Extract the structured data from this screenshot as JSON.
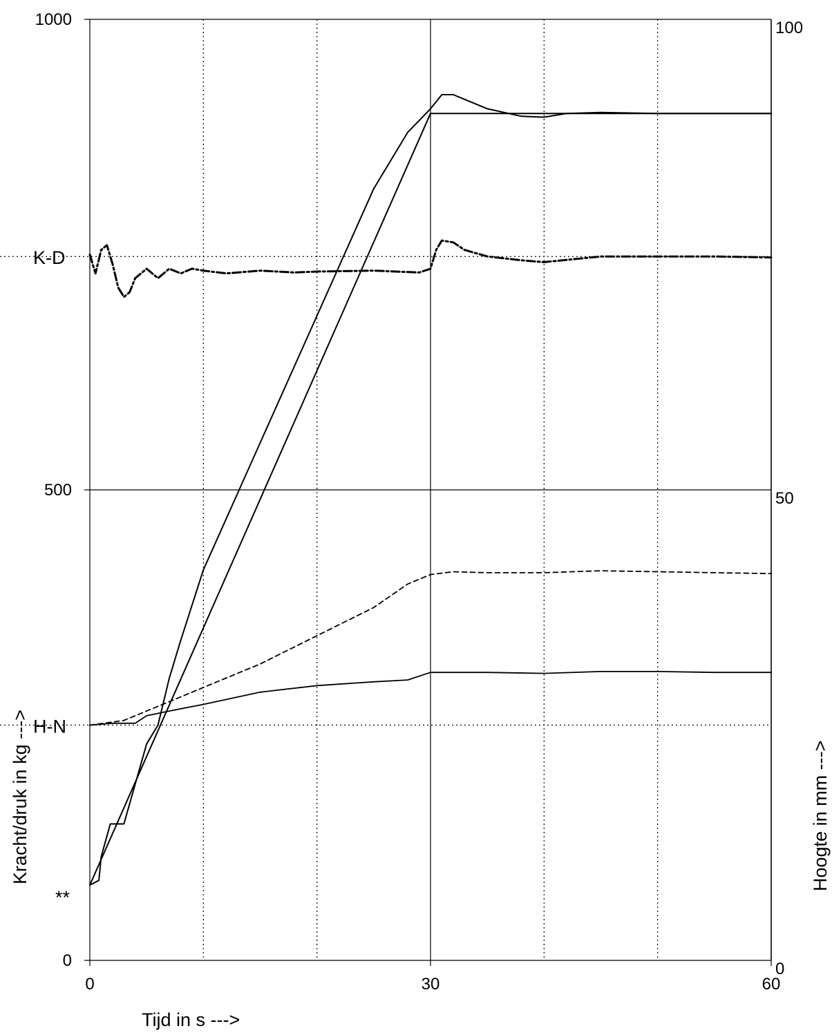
{
  "chart_data": {
    "type": "line",
    "title": "",
    "xlabel": "Tijd in s --->",
    "ylabel_left": "Kracht/druk in kg --->",
    "ylabel_right": "Hoogte in mm --->",
    "xlim": [
      0,
      60
    ],
    "ylim_left": [
      0,
      1000
    ],
    "ylim_right": [
      0,
      100
    ],
    "x_ticks": [
      "0",
      "30",
      "60"
    ],
    "y_left_ticks": [
      "0",
      "500",
      "1000"
    ],
    "y_right_ticks": [
      "0",
      "50",
      "100"
    ],
    "grid": {
      "horizontal": [
        0,
        500,
        1000
      ],
      "vertical_solid": [
        0,
        30,
        60
      ],
      "vertical_dotted": [
        10,
        20,
        40,
        50
      ]
    },
    "reference_lines": [
      {
        "label": "K-D",
        "y": 748
      },
      {
        "label": "H-N",
        "y": 250
      }
    ],
    "annotation": "**",
    "series": [
      {
        "style": "solid",
        "axis": "left",
        "x": [
          0,
          30,
          60
        ],
        "y": [
          80,
          900,
          900
        ]
      },
      {
        "style": "solid",
        "axis": "left",
        "x": [
          0,
          0.8,
          1,
          1.8,
          3,
          5,
          6,
          7,
          8,
          10,
          15,
          20,
          25,
          28,
          30,
          31,
          32,
          33,
          35,
          38,
          40,
          42,
          45,
          50,
          55,
          60
        ],
        "y": [
          80,
          85,
          110,
          145,
          145,
          230,
          250,
          300,
          340,
          415,
          550,
          685,
          820,
          880,
          905,
          920,
          920,
          915,
          905,
          897,
          896,
          900,
          901,
          900,
          900,
          900
        ]
      },
      {
        "style": "dash-dot",
        "axis": "left",
        "x": [
          0,
          0.5,
          1,
          1.5,
          2,
          2.5,
          3,
          3.5,
          4,
          5,
          6,
          7,
          8,
          9,
          10,
          12,
          15,
          18,
          20,
          25,
          29,
          30,
          30.5,
          31,
          32,
          33,
          35,
          38,
          40,
          45,
          50,
          55,
          60
        ],
        "y": [
          750,
          730,
          755,
          760,
          740,
          715,
          705,
          710,
          725,
          735,
          725,
          735,
          730,
          735,
          733,
          730,
          733,
          731,
          732,
          733,
          731,
          735,
          755,
          765,
          763,
          755,
          748,
          744,
          742,
          748,
          748,
          748,
          747
        ]
      },
      {
        "style": "dashed",
        "axis": "left",
        "x": [
          0,
          3,
          5,
          7,
          10,
          15,
          20,
          25,
          28,
          30,
          32,
          35,
          40,
          45,
          50,
          55,
          60
        ],
        "y": [
          250,
          255,
          265,
          275,
          290,
          315,
          345,
          375,
          400,
          410,
          413,
          412,
          412,
          414,
          413,
          412,
          411
        ]
      },
      {
        "style": "solid-thin",
        "axis": "left",
        "x": [
          0,
          2,
          4,
          5,
          7,
          10,
          15,
          20,
          25,
          28,
          30,
          35,
          40,
          45,
          50,
          55,
          60
        ],
        "y": [
          250,
          252,
          252,
          260,
          265,
          272,
          285,
          292,
          296,
          298,
          306,
          306,
          305,
          307,
          307,
          306,
          306
        ]
      }
    ]
  }
}
